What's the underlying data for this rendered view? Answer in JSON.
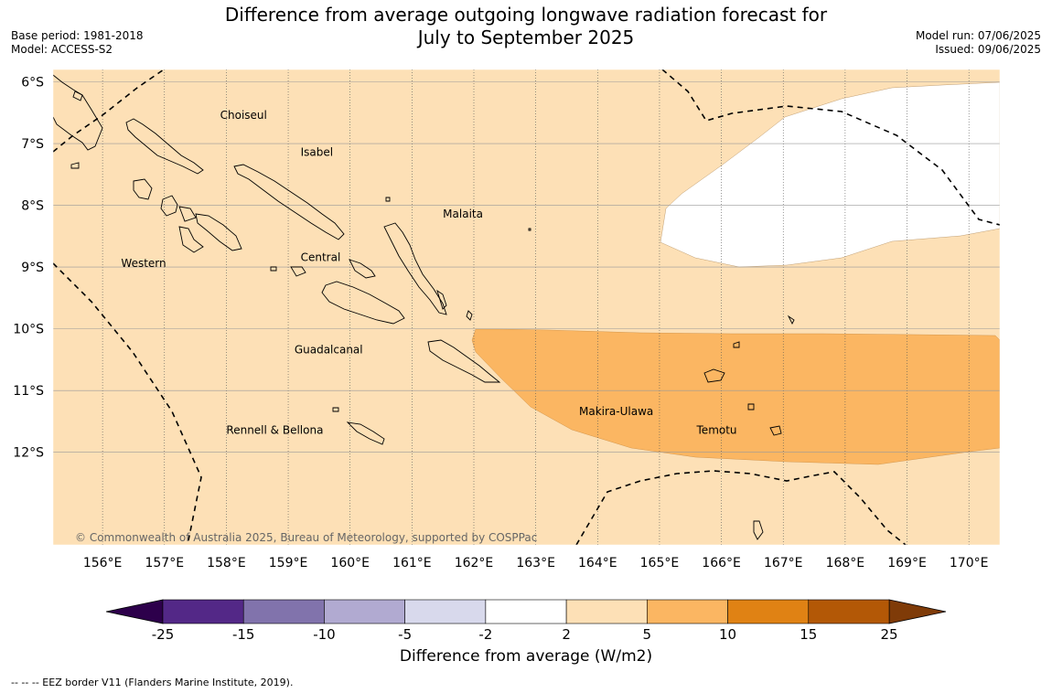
{
  "header": {
    "title_line1": "Difference from average outgoing longwave radiation forecast for",
    "title_line2": "July to September 2025",
    "base_period": "Base period: 1981-2018",
    "model": "Model: ACCESS-S2",
    "model_run": "Model run: 07/06/2025",
    "issued": "Issued: 09/06/2025"
  },
  "map": {
    "lon_range": [
      155.2,
      170.5
    ],
    "lat_range": [
      -13.5,
      -5.8
    ],
    "lon_ticks": [
      "156°E",
      "157°E",
      "158°E",
      "159°E",
      "160°E",
      "161°E",
      "162°E",
      "163°E",
      "164°E",
      "165°E",
      "166°E",
      "167°E",
      "168°E",
      "169°E",
      "170°E"
    ],
    "lat_ticks": [
      "6°S",
      "7°S",
      "8°S",
      "9°S",
      "10°S",
      "11°S",
      "12°S"
    ],
    "province_labels": [
      {
        "text": "Choiseul",
        "lon": 157.9,
        "lat": -6.6
      },
      {
        "text": "Isabel",
        "lon": 159.2,
        "lat": -7.2
      },
      {
        "text": "Malaita",
        "lon": 161.5,
        "lat": -8.2
      },
      {
        "text": "Western",
        "lon": 156.3,
        "lat": -9.0
      },
      {
        "text": "Central",
        "lon": 159.2,
        "lat": -8.9
      },
      {
        "text": "Guadalcanal",
        "lon": 159.1,
        "lat": -10.4
      },
      {
        "text": "Makira-Ulawa",
        "lon": 163.7,
        "lat": -11.4
      },
      {
        "text": "Temotu",
        "lon": 165.6,
        "lat": -11.7
      },
      {
        "text": "Rennell & Bellona",
        "lon": 158.0,
        "lat": -11.7
      }
    ],
    "copyright": "© Commonwealth of Australia 2025, Bureau of Meteorology, supported by COSPPac",
    "background_fill": "#fde0b6",
    "low_fill": "#ffffff",
    "high_fill": "#fbb662"
  },
  "colorbar": {
    "title": "Difference from average (W/m2)",
    "tick_labels": [
      "-25",
      "-15",
      "-10",
      "-5",
      "-2",
      "2",
      "5",
      "10",
      "15",
      "25"
    ],
    "segment_colors": [
      "#532887",
      "#8173ac",
      "#b1aad1",
      "#d8d9ec",
      "#ffffff",
      "#fde0b6",
      "#fbb662",
      "#e08214",
      "#b35806"
    ],
    "under_color": "#2d004b",
    "over_color": "#7f3b08"
  },
  "footnote": "--  --  -- EEZ border V11 (Flanders Marine Institute, 2019)."
}
